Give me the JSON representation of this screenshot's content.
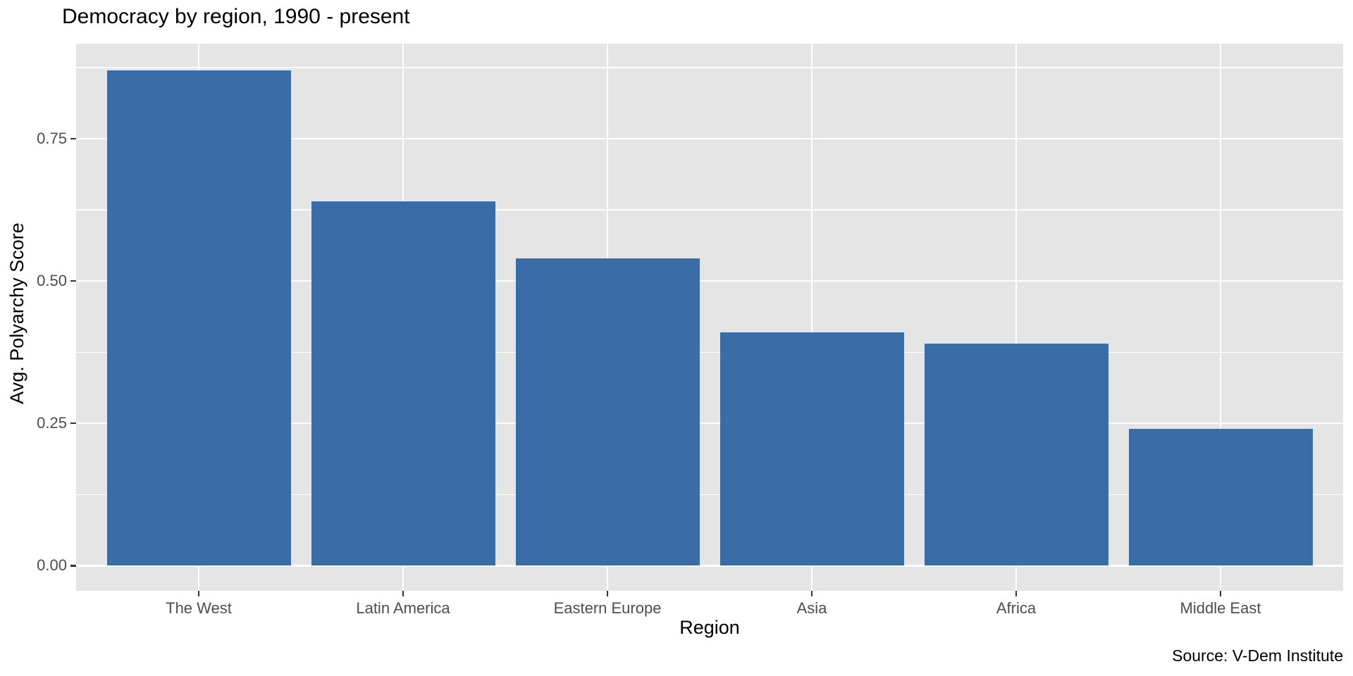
{
  "title": "Democracy by region, 1990 - present",
  "caption": "Source: V-Dem Institute",
  "chart_data": {
    "type": "bar",
    "title": "Democracy by region, 1990 - present",
    "categories": [
      "The West",
      "Latin America",
      "Eastern Europe",
      "Asia",
      "Africa",
      "Middle East"
    ],
    "values": [
      0.87,
      0.64,
      0.54,
      0.41,
      0.39,
      0.24
    ],
    "xlabel": "Region",
    "ylabel": "Avg. Polyarchy Score",
    "caption": "Source: V-Dem Institute",
    "y_ticks": [
      0,
      0.25,
      0.5,
      0.75
    ],
    "y_tick_labels": [
      "0.00",
      "0.25",
      "0.50",
      "0.75"
    ],
    "y_minor_ticks": [
      0.125,
      0.375,
      0.625,
      0.875
    ],
    "ylim": [
      -0.044,
      0.917
    ],
    "bar_width_fraction": 0.9,
    "legend": "none",
    "grid": "on",
    "colors": {
      "bar": "#3A6DA7",
      "panel_bg": "#E5E5E5",
      "gridline": "#FFFFFF",
      "axis_text": "#4D4D4D",
      "tick_mark": "#333333",
      "title_text": "#000000"
    }
  }
}
